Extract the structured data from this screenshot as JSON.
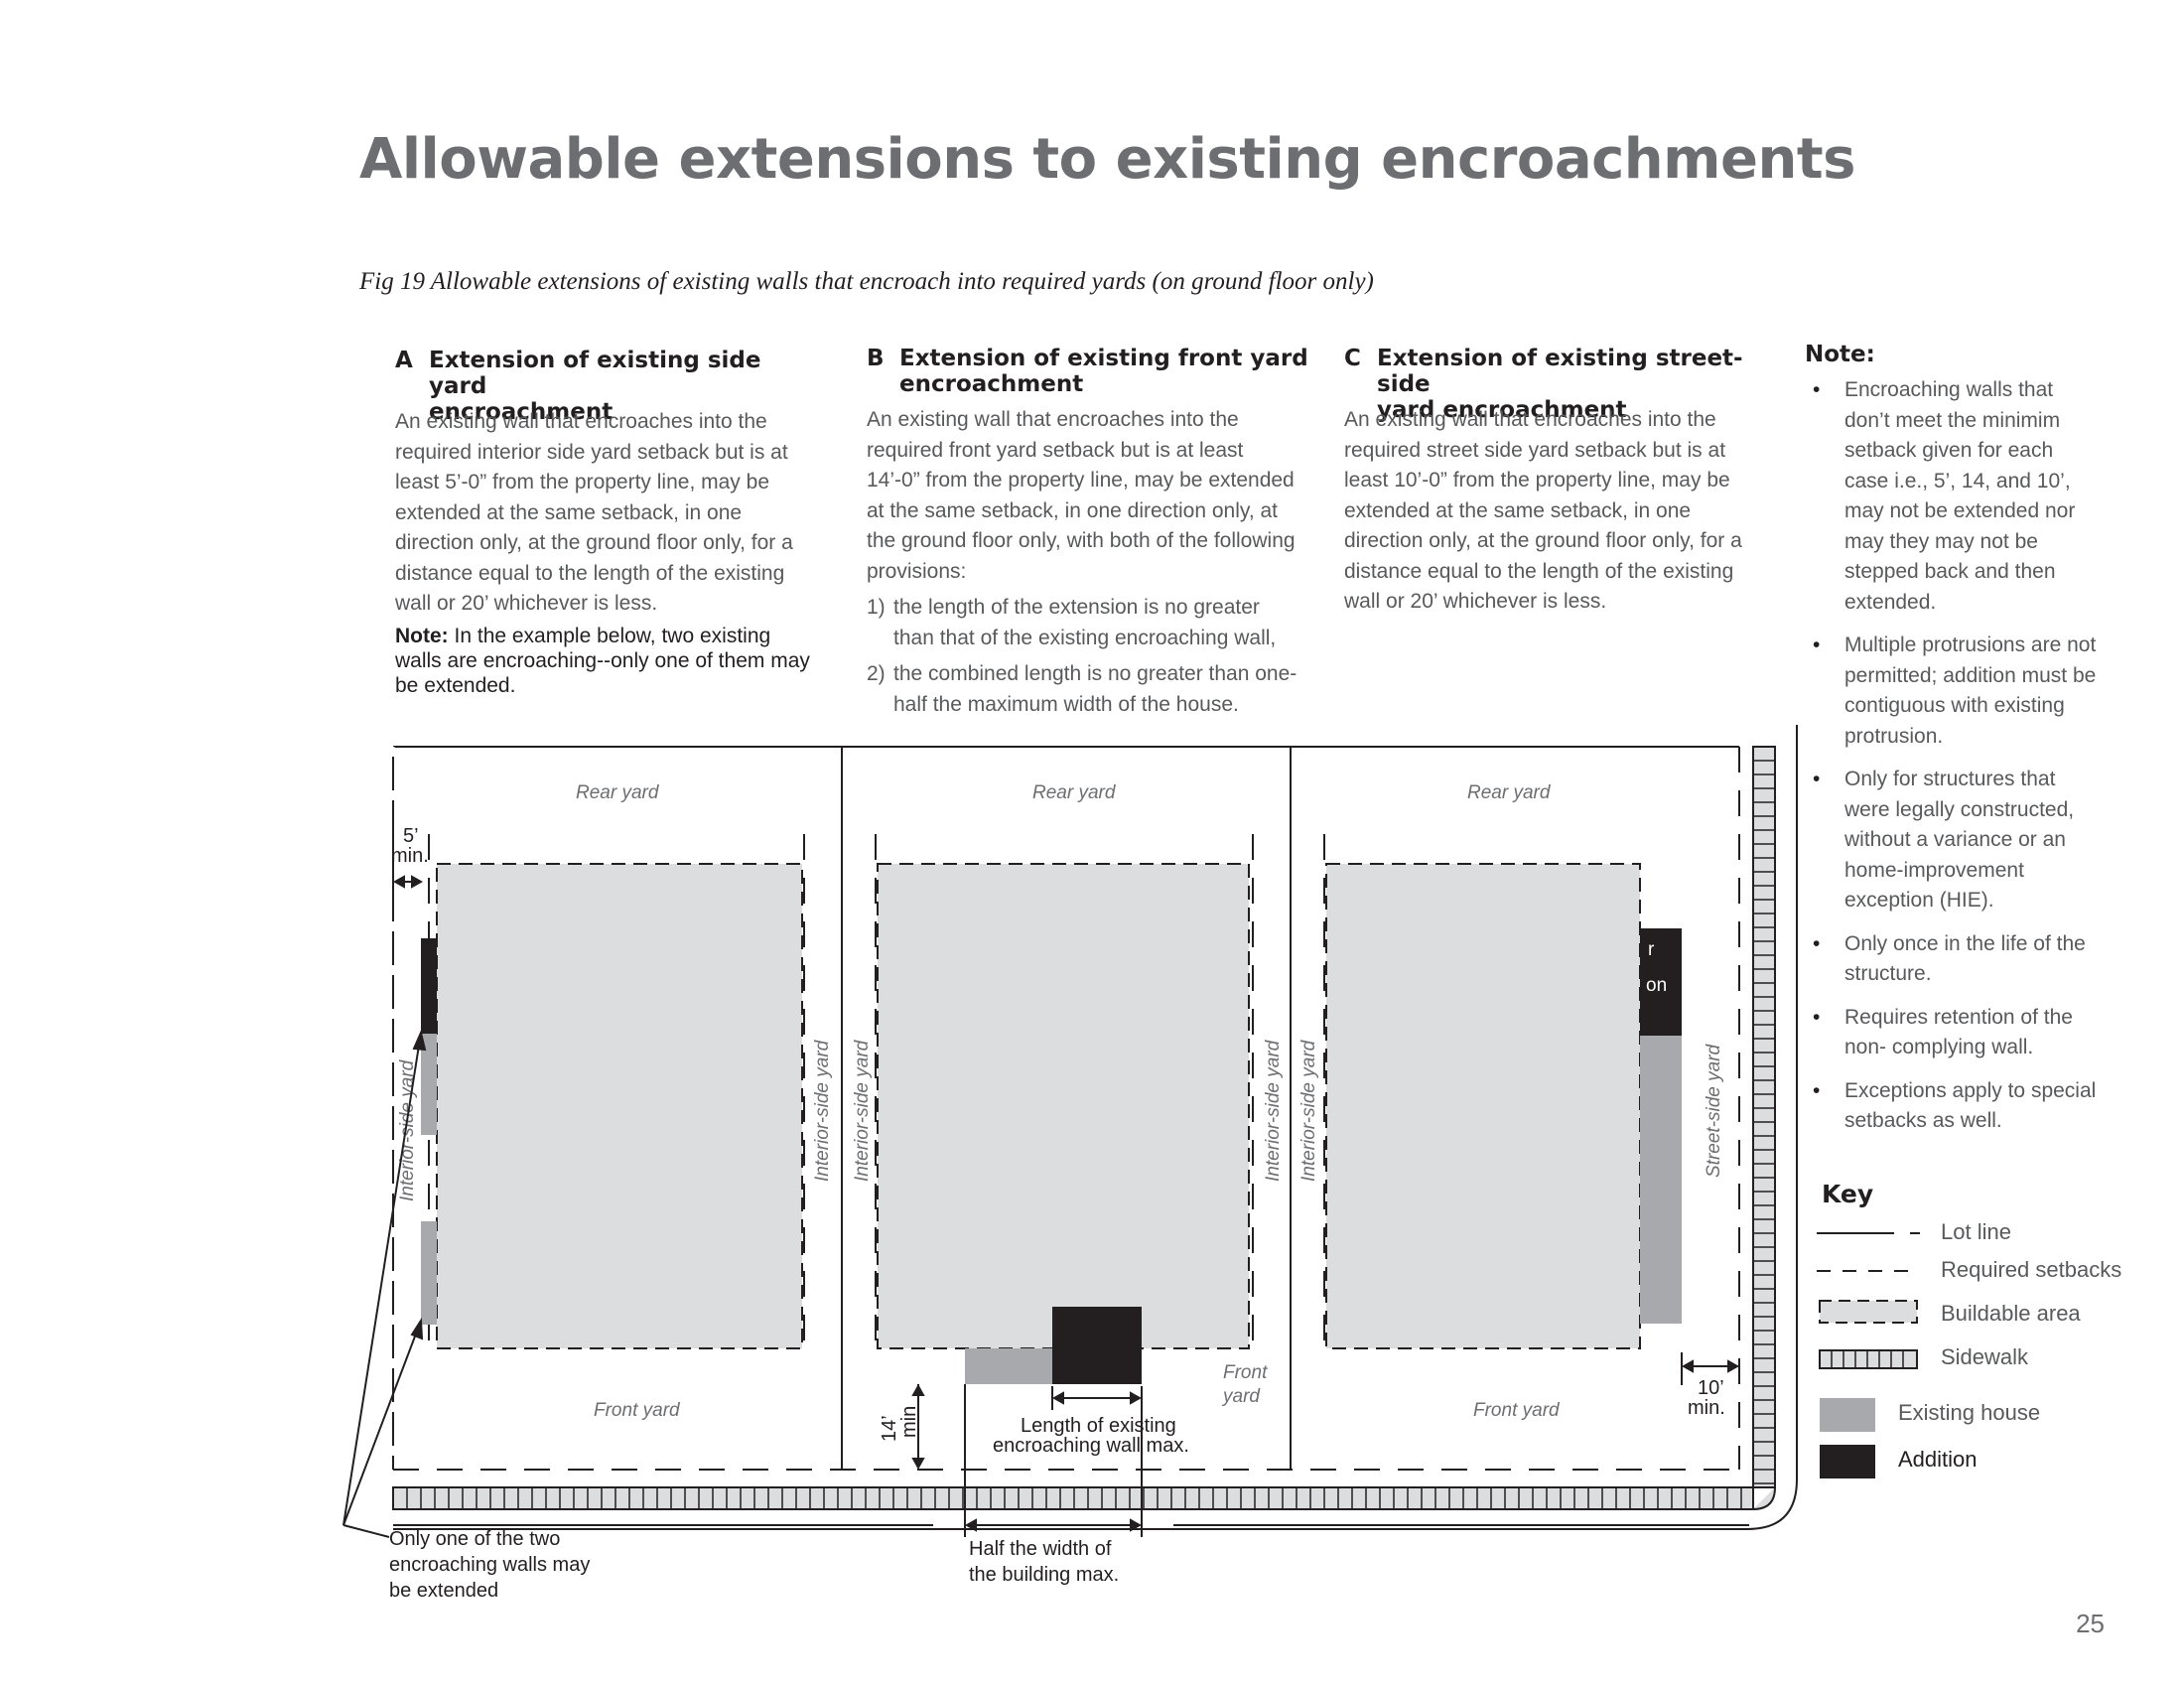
{
  "page_title": "Allowable extensions to existing encroachments",
  "figure_caption": "Fig 19  Allowable extensions of existing walls that encroach into required yards (on ground floor only)",
  "sections": {
    "a": {
      "letter": "A",
      "heading_line1": "Extension of existing side yard",
      "heading_line2": "encroachment",
      "body": "An existing wall that encroaches into the required interior side yard setback but is at least 5’-0” from the property line, may be extended at the same setback, in one direction only, at the ground floor only, for a distance equal to the length of the existing wall or 20’ whichever is less.",
      "note_label": "Note:",
      "note_text": " In the example below, two existing walls are encroaching--only one of them may be extended."
    },
    "b": {
      "letter": "B",
      "heading_line1": "Extension of existing front yard",
      "heading_line2": "encroachment",
      "body": "An existing wall that encroaches into the required front yard setback but is at least 14’-0” from the property line, may be extended at the same setback, in one direction only, at the ground floor only, with both of the following provisions:",
      "list": [
        {
          "num": "1)",
          "text": "the length of the extension is no greater than that of the existing encroaching wall,"
        },
        {
          "num": "2)",
          "text": "the combined length is no greater than one-half the maximum width of the house."
        }
      ]
    },
    "c": {
      "letter": "C",
      "heading_line1": "Extension of existing street-side",
      "heading_line2": "yard encroachment",
      "body": "An existing wall that encroaches into the required street side yard setback but is at least 10’-0” from the property line, may be extended at the same setback, in one direction only, at the ground floor only, for a distance equal to the length of the existing wall or 20’ whichever is less."
    }
  },
  "side_note": {
    "heading": "Note:",
    "bullets": [
      "Encroaching walls that don’t meet the minimim setback given for each case i.e., 5’, 14, and 10’, may not be extended nor may they may not be stepped back and then extended.",
      "Multiple protrusions are not permitted; addition must be contiguous with existing protrusion.",
      "Only for structures that were legally constructed, without a variance or an home-improvement exception (HIE).",
      "Only once in the life of the structure.",
      "Requires retention of the non- complying wall.",
      "Exceptions apply to special setbacks as well."
    ]
  },
  "key": {
    "heading": "Key",
    "items": [
      {
        "label": "Lot line"
      },
      {
        "label": "Required setbacks"
      },
      {
        "label": "Buildable area"
      },
      {
        "label": "Sidewalk"
      },
      {
        "label": "Existing house"
      },
      {
        "label": "Addition"
      }
    ]
  },
  "diagram": {
    "rear_yard": "Rear yard",
    "front_yard": "Front yard",
    "front_yard_two_line": [
      "Front",
      "yard"
    ],
    "interior_side_yard": "Interior-side yard",
    "street_side_yard": "Street-side yard",
    "dim_5": [
      "5’",
      "min."
    ],
    "dim_14": [
      "14’",
      "min"
    ],
    "dim_10": [
      "10’",
      "min."
    ],
    "addition_partial": [
      "r",
      "on"
    ],
    "callout_one_of_two": [
      "Only one of the two",
      "encroaching walls may",
      "be extended"
    ],
    "callout_length": [
      "Length of existing",
      "encroaching wall max."
    ],
    "callout_half_width": [
      "Half the width of",
      "the building max."
    ]
  },
  "colors": {
    "buildable": "#dcdddf",
    "existing_house": "#a7a9ac",
    "addition": "#231f20",
    "title_gray": "#6d6e71"
  },
  "page_number": "25"
}
